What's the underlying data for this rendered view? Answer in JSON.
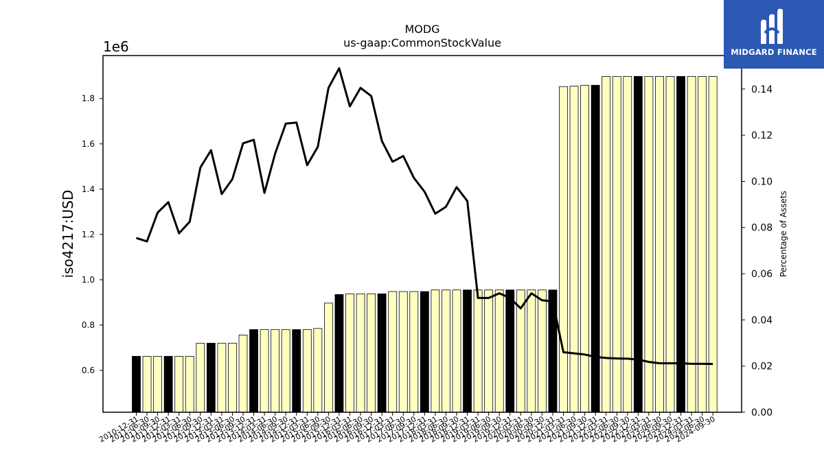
{
  "colors": {
    "highlight_bar": "#000000",
    "regular_bar": "#ffffbf",
    "line": "#000000",
    "logo_bg": "#2a58b3"
  },
  "logo": {
    "text": "MIDGARD FINANCE",
    "icon": "midgard-logo-icon"
  },
  "chart_data": {
    "type": "bar",
    "title": "MODG",
    "subtitle": "us-gaap:CommonStockValue",
    "ylabel": "iso4217:USD",
    "y_offset_label": "1e6",
    "y2label": "Percentage of Assets",
    "ylim": [
      415000,
      1990000
    ],
    "y_ticks": [
      0.6,
      0.8,
      1.0,
      1.2,
      1.4,
      1.6,
      1.8
    ],
    "y2lim": [
      0,
      0.1545
    ],
    "y2_ticks": [
      "0.00",
      "0.02",
      "0.04",
      "0.06",
      "0.08",
      "0.10",
      "0.12",
      "0.14"
    ],
    "categories": [
      "2010-12-31",
      "2011-06-30",
      "2011-09-30",
      "2011-12-31",
      "2012-03-31",
      "2012-06-30",
      "2012-09-30",
      "2012-12-31",
      "2013-03-31",
      "2013-06-30",
      "2013-09-30",
      "2013-12-31",
      "2014-03-31",
      "2014-06-30",
      "2014-09-30",
      "2014-12-31",
      "2015-03-31",
      "2015-06-30",
      "2015-09-30",
      "2015-12-31",
      "2016-03-31",
      "2016-06-30",
      "2016-09-30",
      "2016-12-31",
      "2017-03-31",
      "2017-06-30",
      "2017-09-30",
      "2017-12-31",
      "2018-03-31",
      "2018-06-30",
      "2018-09-30",
      "2018-12-31",
      "2019-03-31",
      "2019-06-30",
      "2019-09-30",
      "2019-12-31",
      "2020-03-31",
      "2020-06-30",
      "2020-09-30",
      "2020-12-31",
      "2021-03-31",
      "2021-06-30",
      "2021-09-30",
      "2021-12-31",
      "2022-03-31",
      "2022-06-30",
      "2022-09-30",
      "2022-12-31",
      "2023-03-31",
      "2023-06-30",
      "2023-09-30",
      "2023-12-31",
      "2024-03-31",
      "2024-06-30",
      "2024-09-30"
    ],
    "series": [
      {
        "type": "bar",
        "axis": "left",
        "values": [
          662000,
          662000,
          662000,
          662000,
          662000,
          662000,
          720000,
          720000,
          720000,
          720000,
          756000,
          780000,
          780000,
          780000,
          780000,
          780000,
          780000,
          785000,
          897000,
          935000,
          938000,
          938000,
          938000,
          938000,
          948000,
          948000,
          948000,
          948000,
          955000,
          955000,
          955000,
          955000,
          955000,
          955000,
          955000,
          955000,
          955000,
          955000,
          955000,
          955000,
          1853000,
          1855000,
          1859000,
          1859000,
          1898000,
          1898000,
          1898000,
          1898000,
          1898000,
          1898000,
          1898000,
          1898000,
          1898000,
          1898000,
          1898000
        ],
        "highlighted": [
          true,
          false,
          false,
          true,
          false,
          false,
          false,
          true,
          false,
          false,
          false,
          true,
          false,
          false,
          false,
          true,
          false,
          false,
          false,
          true,
          false,
          false,
          false,
          true,
          false,
          false,
          false,
          true,
          false,
          false,
          false,
          true,
          false,
          false,
          false,
          true,
          false,
          false,
          false,
          true,
          false,
          false,
          false,
          true,
          false,
          false,
          false,
          true,
          false,
          false,
          false,
          true,
          false,
          false,
          false
        ]
      },
      {
        "type": "line",
        "axis": "right",
        "values": [
          0.0755,
          0.074,
          0.0865,
          0.091,
          0.0775,
          0.0825,
          0.106,
          0.1135,
          0.0945,
          0.101,
          0.1165,
          0.118,
          0.095,
          0.112,
          0.125,
          0.1255,
          0.107,
          0.115,
          0.1405,
          0.149,
          0.1325,
          0.1405,
          0.137,
          0.1175,
          0.1085,
          0.111,
          0.1015,
          0.0955,
          0.086,
          0.089,
          0.0975,
          0.0915,
          0.0495,
          0.0495,
          0.0515,
          0.0495,
          0.045,
          0.0515,
          0.0485,
          0.048,
          0.026,
          0.0255,
          0.025,
          0.024,
          0.0235,
          0.0233,
          0.0232,
          0.0228,
          0.0218,
          0.0212,
          0.0212,
          0.0212,
          0.021,
          0.021,
          0.0209
        ]
      }
    ]
  }
}
